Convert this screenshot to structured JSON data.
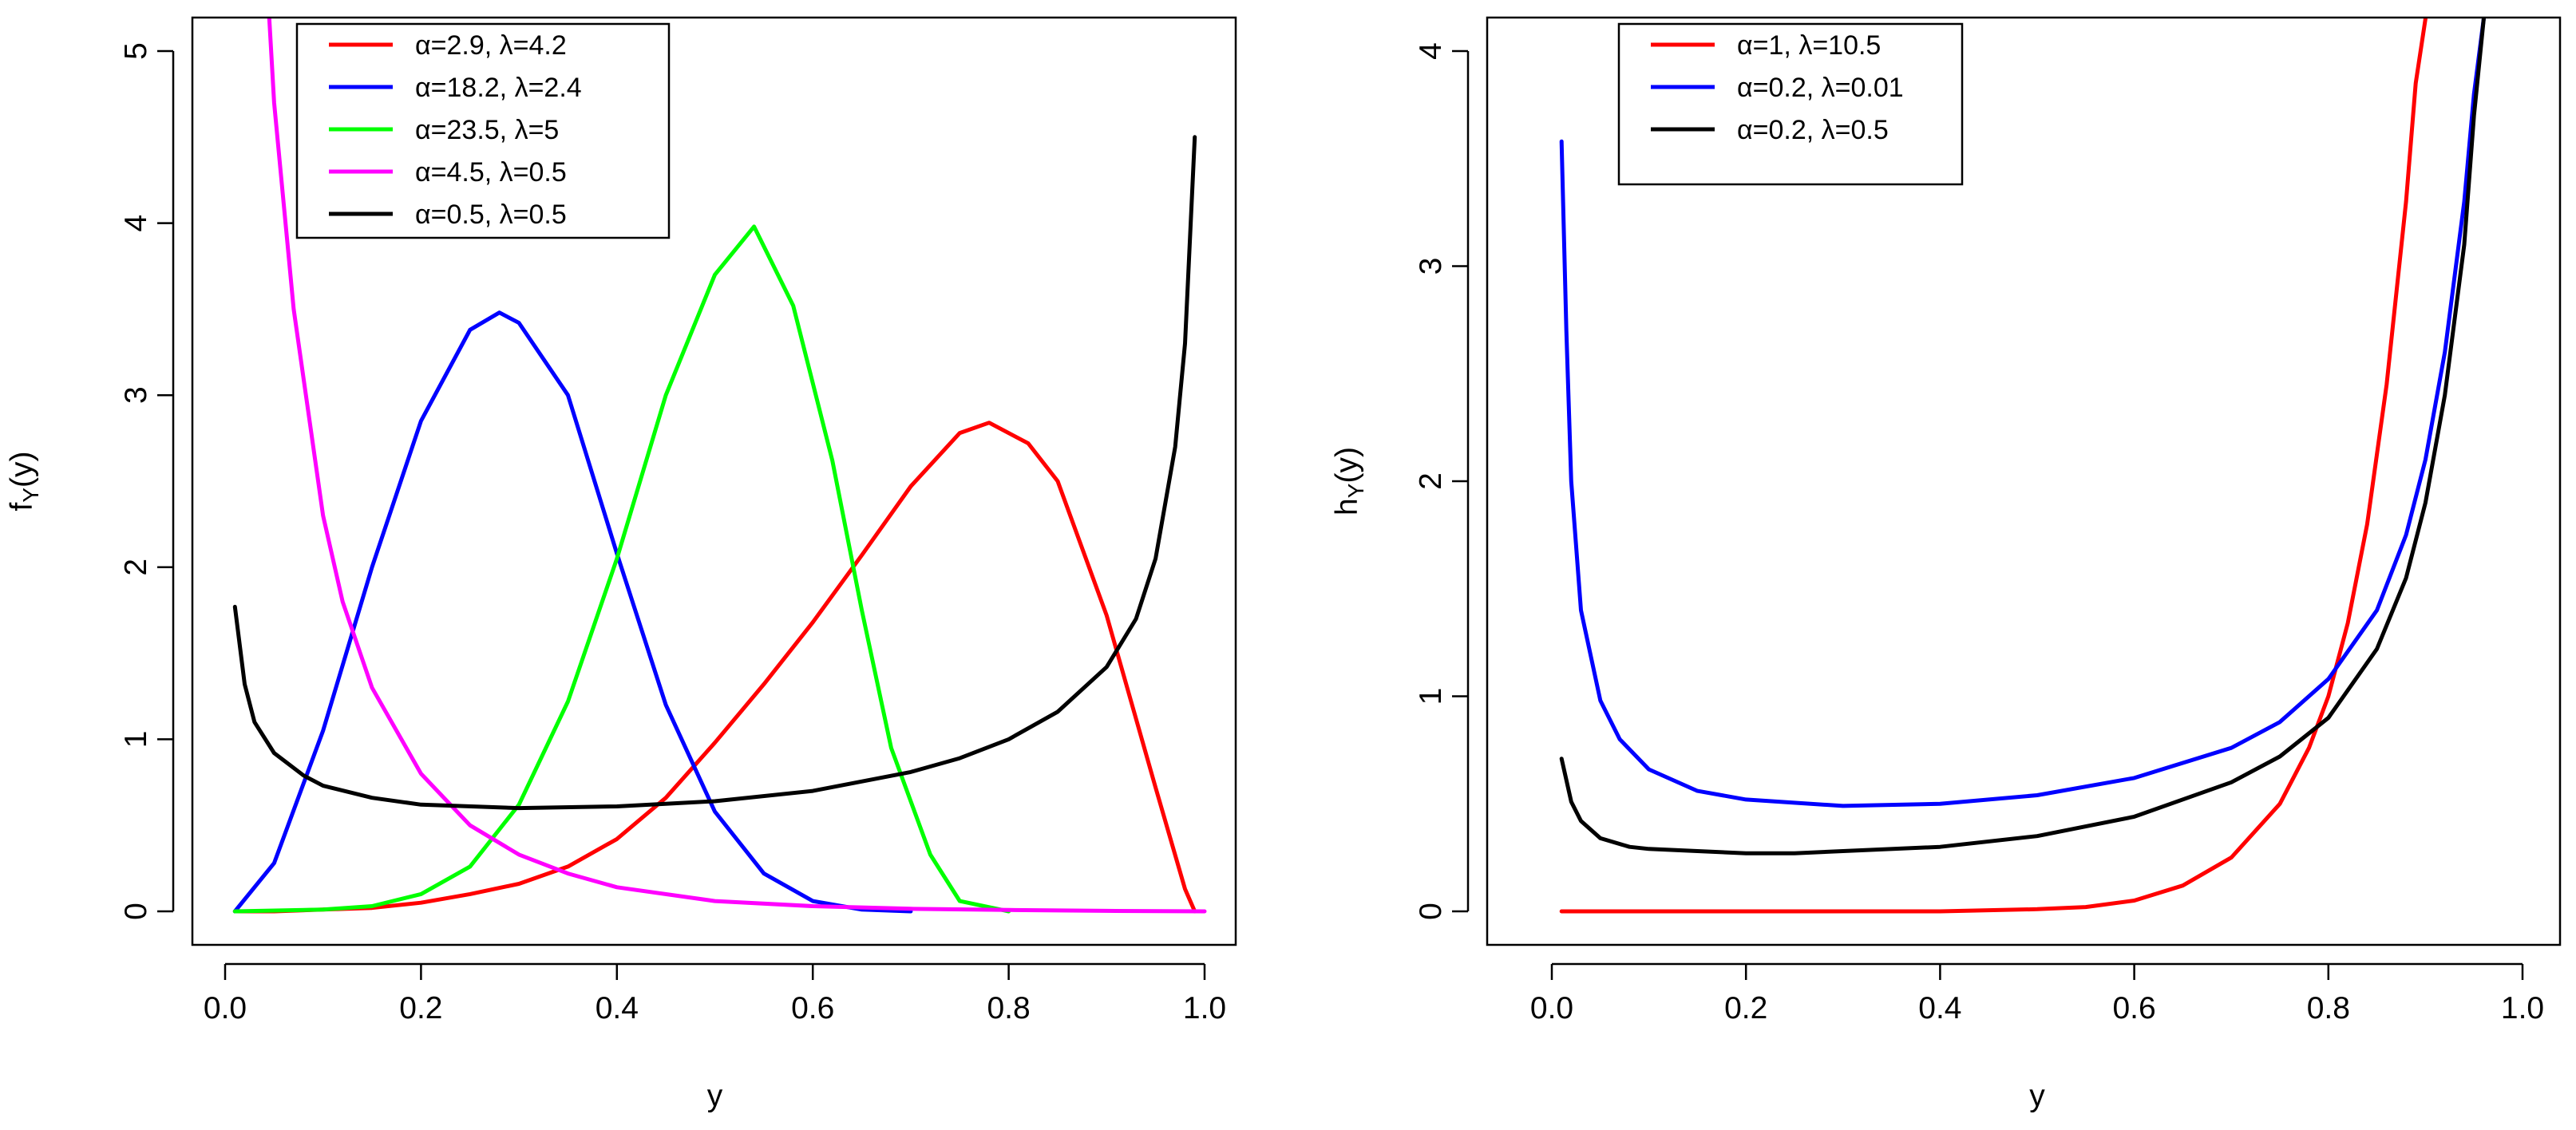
{
  "chart_data": [
    {
      "type": "line",
      "title": "",
      "xlabel": "y",
      "ylabel_main": "f",
      "ylabel_sub": "Y",
      "ylabel_tail": "(y)",
      "xlim": [
        0,
        1
      ],
      "ylim": [
        0,
        5.2
      ],
      "xticks": [
        "0.0",
        "0.2",
        "0.4",
        "0.6",
        "0.8",
        "1.0"
      ],
      "yticks": [
        "0",
        "1",
        "2",
        "3",
        "4",
        "5"
      ],
      "legend_position": "top-left",
      "series": [
        {
          "name": "α=2.9, λ=4.2",
          "color": "#ff0000",
          "x": [
            0.01,
            0.05,
            0.1,
            0.15,
            0.2,
            0.25,
            0.3,
            0.35,
            0.4,
            0.45,
            0.5,
            0.55,
            0.6,
            0.65,
            0.7,
            0.75,
            0.78,
            0.82,
            0.85,
            0.9,
            0.95,
            0.98,
            0.99
          ],
          "y": [
            0.0,
            0.0,
            0.01,
            0.02,
            0.05,
            0.1,
            0.16,
            0.26,
            0.42,
            0.66,
            0.98,
            1.32,
            1.68,
            2.07,
            2.47,
            2.78,
            2.84,
            2.72,
            2.5,
            1.72,
            0.72,
            0.13,
            0.0
          ]
        },
        {
          "name": "α=18.2, λ=2.4",
          "color": "#0000ff",
          "x": [
            0.01,
            0.05,
            0.1,
            0.15,
            0.2,
            0.25,
            0.28,
            0.3,
            0.35,
            0.4,
            0.45,
            0.5,
            0.55,
            0.6,
            0.65,
            0.7
          ],
          "y": [
            0.0,
            0.28,
            1.05,
            2.0,
            2.85,
            3.38,
            3.48,
            3.42,
            3.0,
            2.08,
            1.2,
            0.58,
            0.22,
            0.06,
            0.01,
            0.0
          ]
        },
        {
          "name": "α=23.5, λ=5",
          "color": "#00ff00",
          "x": [
            0.01,
            0.1,
            0.15,
            0.2,
            0.25,
            0.3,
            0.35,
            0.4,
            0.45,
            0.5,
            0.54,
            0.58,
            0.62,
            0.65,
            0.68,
            0.72,
            0.75,
            0.8
          ],
          "y": [
            0.0,
            0.01,
            0.03,
            0.1,
            0.26,
            0.62,
            1.22,
            2.05,
            3.0,
            3.7,
            3.98,
            3.52,
            2.62,
            1.75,
            0.95,
            0.33,
            0.06,
            0.0
          ]
        },
        {
          "name": "α=4.5, λ=0.5",
          "color": "#ff00ff",
          "x": [
            0.045,
            0.05,
            0.07,
            0.1,
            0.12,
            0.15,
            0.2,
            0.25,
            0.3,
            0.35,
            0.4,
            0.5,
            0.6,
            0.7,
            0.8,
            0.9,
            1.0
          ],
          "y": [
            5.2,
            4.7,
            3.5,
            2.3,
            1.8,
            1.3,
            0.8,
            0.5,
            0.33,
            0.22,
            0.14,
            0.06,
            0.03,
            0.015,
            0.008,
            0.003,
            0.0
          ]
        },
        {
          "name": "α=0.5, λ=0.5",
          "color": "#000000",
          "x": [
            0.01,
            0.02,
            0.03,
            0.05,
            0.08,
            0.1,
            0.15,
            0.2,
            0.3,
            0.4,
            0.5,
            0.6,
            0.7,
            0.75,
            0.8,
            0.85,
            0.9,
            0.93,
            0.95,
            0.97,
            0.98,
            0.99
          ],
          "y": [
            1.77,
            1.32,
            1.1,
            0.92,
            0.79,
            0.73,
            0.66,
            0.62,
            0.6,
            0.61,
            0.64,
            0.7,
            0.81,
            0.89,
            1.0,
            1.16,
            1.42,
            1.7,
            2.05,
            2.7,
            3.3,
            4.5
          ]
        }
      ]
    },
    {
      "type": "line",
      "title": "",
      "xlabel": "y",
      "ylabel_main": "h",
      "ylabel_sub": "Y",
      "ylabel_tail": "(y)",
      "xlim": [
        0,
        1
      ],
      "ylim": [
        0,
        4.15
      ],
      "xticks": [
        "0.0",
        "0.2",
        "0.4",
        "0.6",
        "0.8",
        "1.0"
      ],
      "yticks": [
        "0",
        "1",
        "2",
        "3",
        "4"
      ],
      "legend_position": "top-left",
      "series": [
        {
          "name": "α=1, λ=10.5",
          "color": "#ff0000",
          "x": [
            0.01,
            0.1,
            0.2,
            0.3,
            0.4,
            0.5,
            0.55,
            0.6,
            0.65,
            0.7,
            0.75,
            0.78,
            0.8,
            0.82,
            0.84,
            0.86,
            0.88,
            0.89,
            0.9
          ],
          "y": [
            0.0,
            0.0,
            0.0,
            0.0,
            0.0,
            0.01,
            0.02,
            0.05,
            0.12,
            0.25,
            0.5,
            0.76,
            1.0,
            1.34,
            1.8,
            2.45,
            3.3,
            3.85,
            4.15
          ]
        },
        {
          "name": "α=0.2, λ=0.01",
          "color": "#0000ff",
          "x": [
            0.01,
            0.015,
            0.02,
            0.03,
            0.05,
            0.07,
            0.1,
            0.15,
            0.2,
            0.3,
            0.4,
            0.5,
            0.6,
            0.7,
            0.75,
            0.8,
            0.85,
            0.88,
            0.9,
            0.92,
            0.94,
            0.95,
            0.96
          ],
          "y": [
            3.58,
            2.7,
            2.0,
            1.4,
            0.98,
            0.8,
            0.66,
            0.56,
            0.52,
            0.49,
            0.5,
            0.54,
            0.62,
            0.76,
            0.88,
            1.08,
            1.4,
            1.75,
            2.1,
            2.6,
            3.3,
            3.8,
            4.15
          ]
        },
        {
          "name": "α=0.2, λ=0.5",
          "color": "#000000",
          "x": [
            0.01,
            0.02,
            0.03,
            0.05,
            0.08,
            0.1,
            0.15,
            0.2,
            0.25,
            0.3,
            0.4,
            0.5,
            0.6,
            0.7,
            0.75,
            0.8,
            0.85,
            0.88,
            0.9,
            0.92,
            0.94,
            0.95,
            0.96
          ],
          "y": [
            0.71,
            0.51,
            0.42,
            0.34,
            0.3,
            0.29,
            0.28,
            0.27,
            0.27,
            0.28,
            0.3,
            0.35,
            0.44,
            0.6,
            0.72,
            0.9,
            1.22,
            1.55,
            1.9,
            2.4,
            3.1,
            3.7,
            4.15
          ]
        }
      ]
    }
  ]
}
